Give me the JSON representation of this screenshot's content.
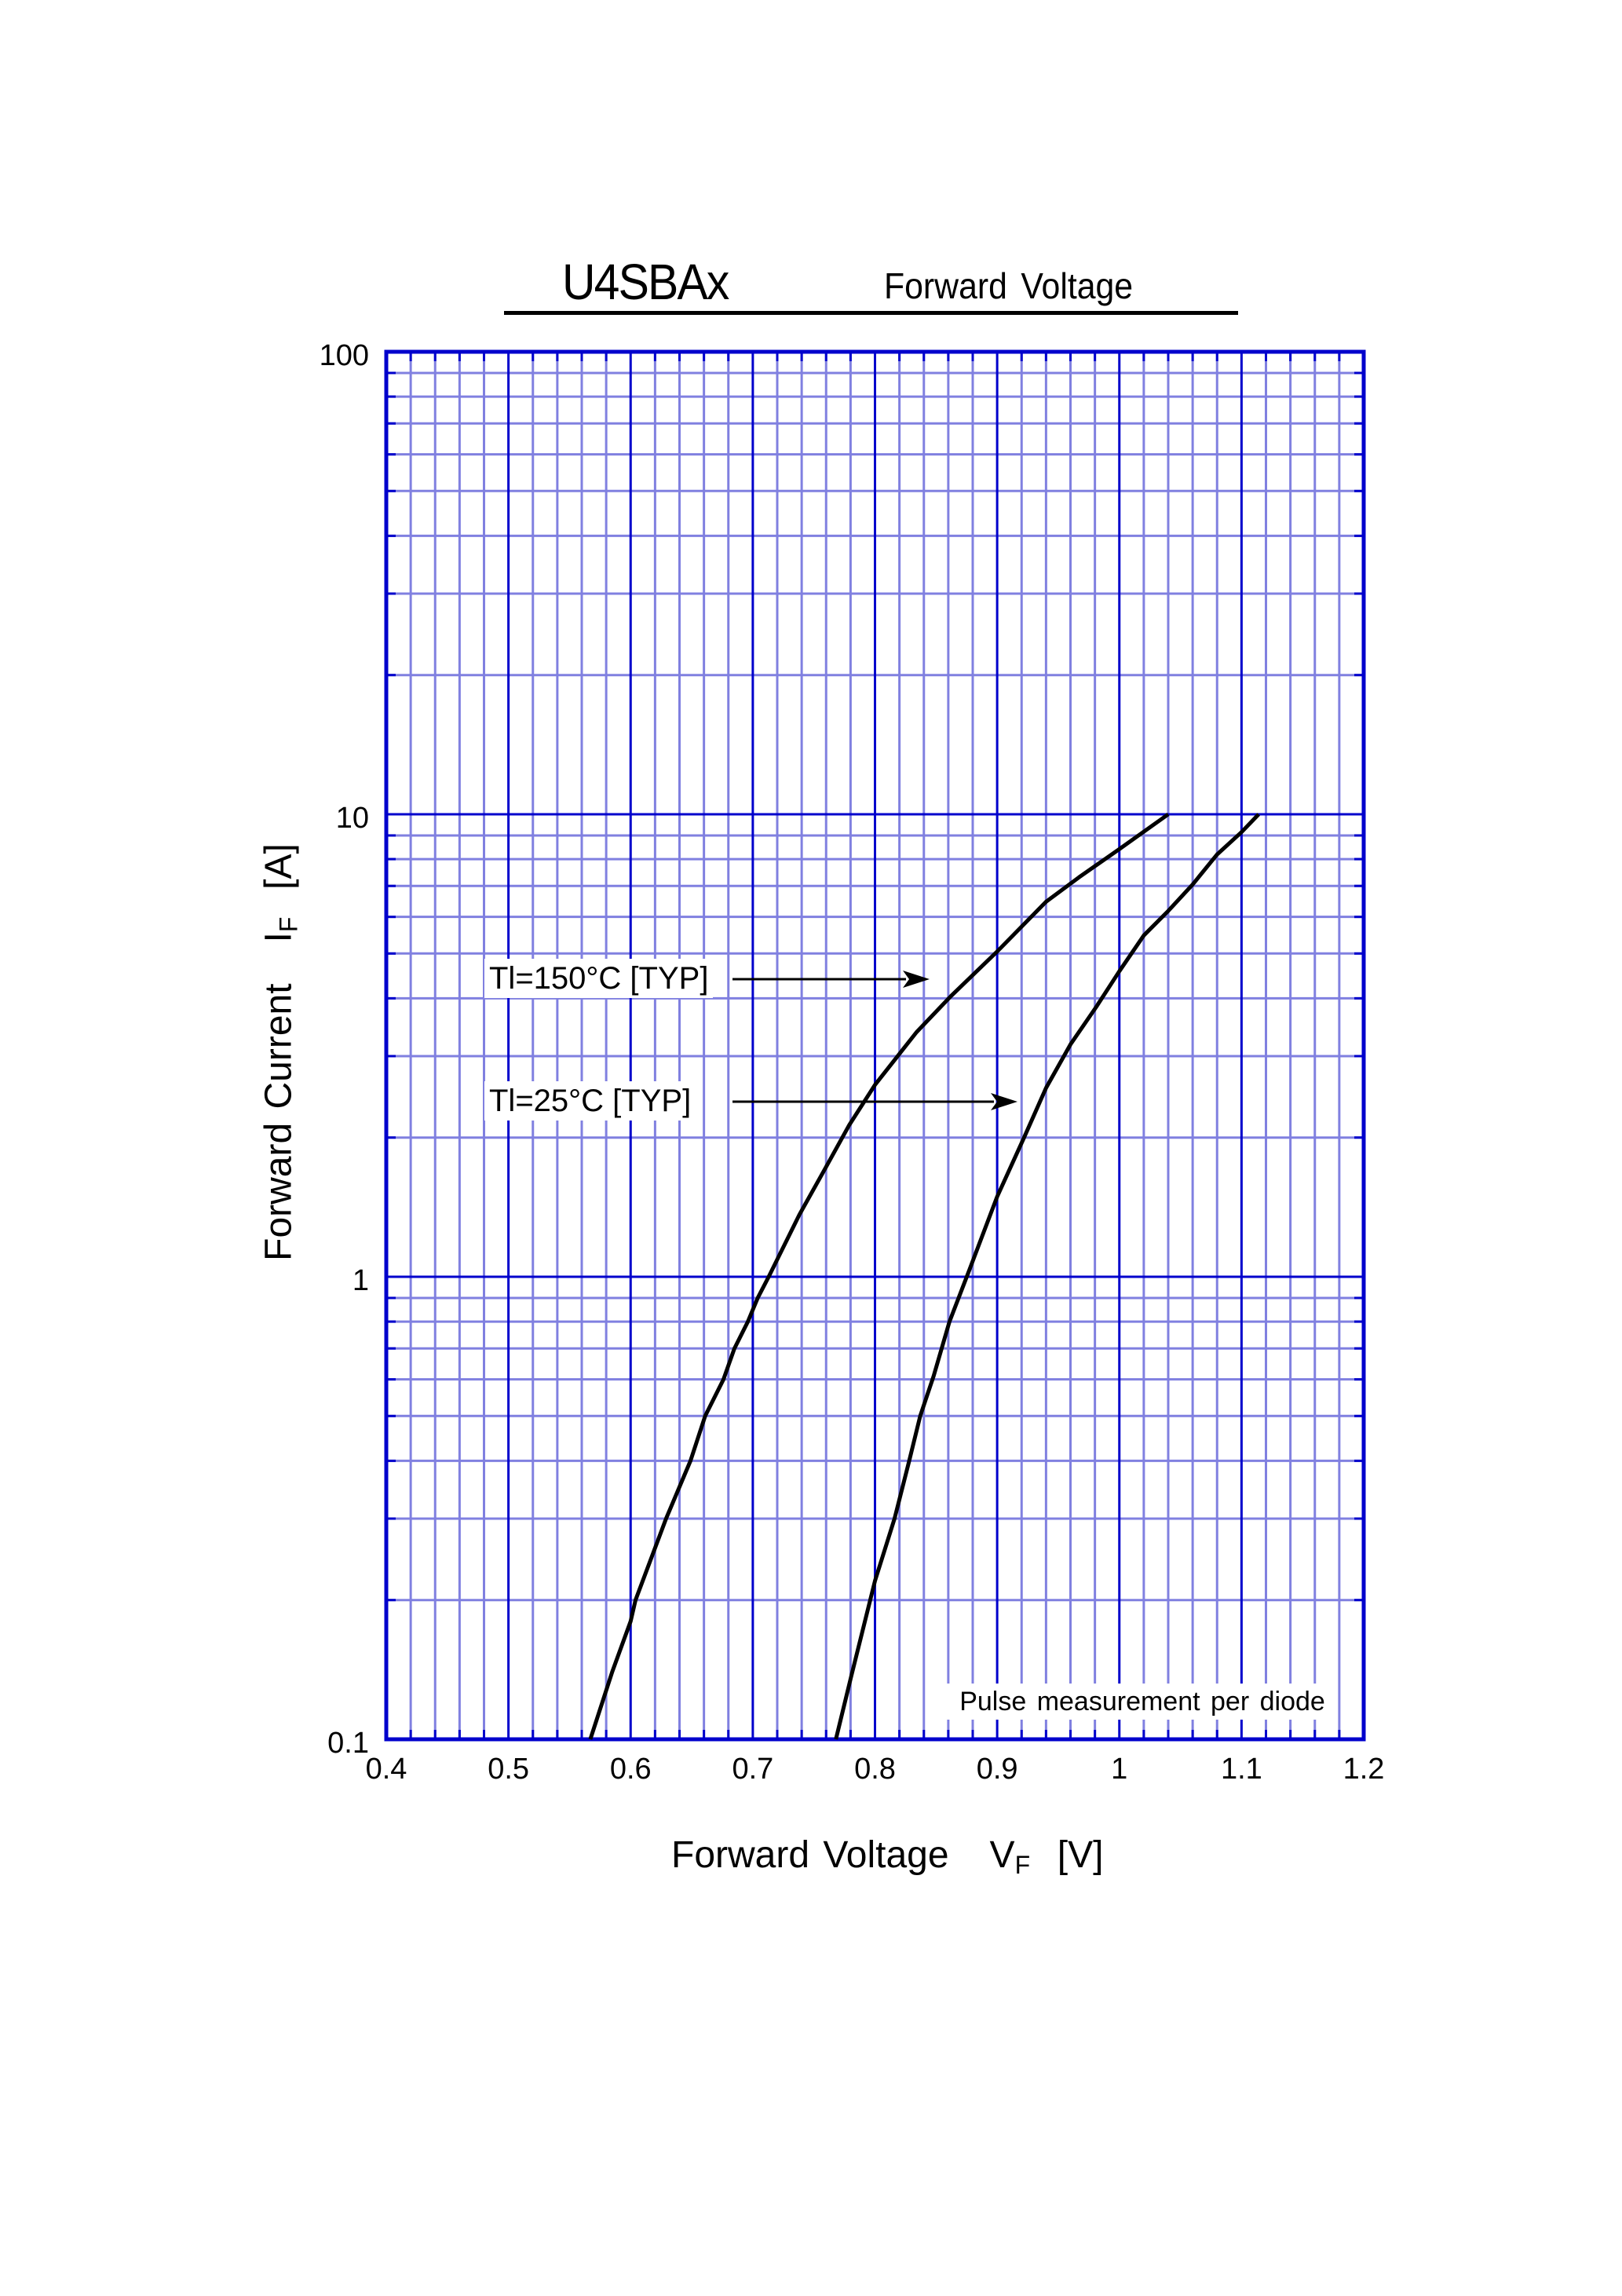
{
  "title": {
    "part_number": "U4SBAx",
    "subtitle": "Forward  Voltage"
  },
  "axes": {
    "x_title": "Forward Voltage",
    "x_symbol": "V",
    "x_symbol_sub": "F",
    "x_unit": "[V]",
    "y_title": "Forward Current",
    "y_symbol": "I",
    "y_symbol_sub": "F",
    "y_unit": "[A]"
  },
  "annotations": {
    "curve_150_label": "Tl=150°C [TYP]",
    "curve_25_label": "Tl=25°C [TYP]",
    "note": "Pulse  measurement  per  diode"
  },
  "colors": {
    "grid_major": "#0000cc",
    "grid_minor": "#8080e0",
    "curve": "#000000",
    "frame": "#0000cc"
  },
  "chart_data": {
    "type": "line",
    "title": "U4SBAx Forward Voltage",
    "xlabel": "Forward Voltage VF [V]",
    "ylabel": "Forward Current IF [A]",
    "xlim": [
      0.4,
      1.2
    ],
    "ylim": [
      0.1,
      100
    ],
    "yscale": "log",
    "grid": true,
    "x_ticks": [
      0.4,
      0.5,
      0.6,
      0.7,
      0.8,
      0.9,
      1.0,
      1.1,
      1.2
    ],
    "x_tick_labels": [
      "0.4",
      "0.5",
      "0.6",
      "0.7",
      "0.8",
      "0.9",
      "1",
      "1.1",
      "1.2"
    ],
    "y_ticks": [
      0.1,
      1,
      10,
      100
    ],
    "y_tick_labels": [
      "0.1",
      "1",
      "10",
      "100"
    ],
    "legend": null,
    "annotations": [
      "Tl=150°C [TYP]",
      "Tl=25°C [TYP]",
      "Pulse measurement per diode"
    ],
    "series": [
      {
        "name": "Tl=150°C [TYP]",
        "x": [
          0.567,
          0.585,
          0.6,
          0.604,
          0.629,
          0.649,
          0.661,
          0.676,
          0.685,
          0.696,
          0.704,
          0.713,
          0.738,
          0.759,
          0.779,
          0.8,
          0.834,
          0.862,
          0.9,
          0.94,
          0.967,
          1.0,
          1.04
        ],
        "y": [
          0.1,
          0.14,
          0.18,
          0.2,
          0.3,
          0.4,
          0.5,
          0.6,
          0.7,
          0.8,
          0.9,
          1.0,
          1.36,
          1.71,
          2.13,
          2.6,
          3.38,
          4.04,
          5.05,
          6.47,
          7.31,
          8.41,
          10.0
        ]
      },
      {
        "name": "Tl=25°C [TYP]",
        "x": [
          0.768,
          0.78,
          0.8,
          0.816,
          0.828,
          0.837,
          0.848,
          0.861,
          0.877,
          0.9,
          0.922,
          0.94,
          0.96,
          0.981,
          1.0,
          1.02,
          1.04,
          1.06,
          1.08,
          1.1,
          1.114
        ],
        "y": [
          0.1,
          0.135,
          0.22,
          0.3,
          0.4,
          0.5,
          0.61,
          0.8,
          1.03,
          1.49,
          2.0,
          2.56,
          3.18,
          3.83,
          4.58,
          5.47,
          6.18,
          7.05,
          8.19,
          9.15,
          10.0
        ]
      }
    ]
  }
}
